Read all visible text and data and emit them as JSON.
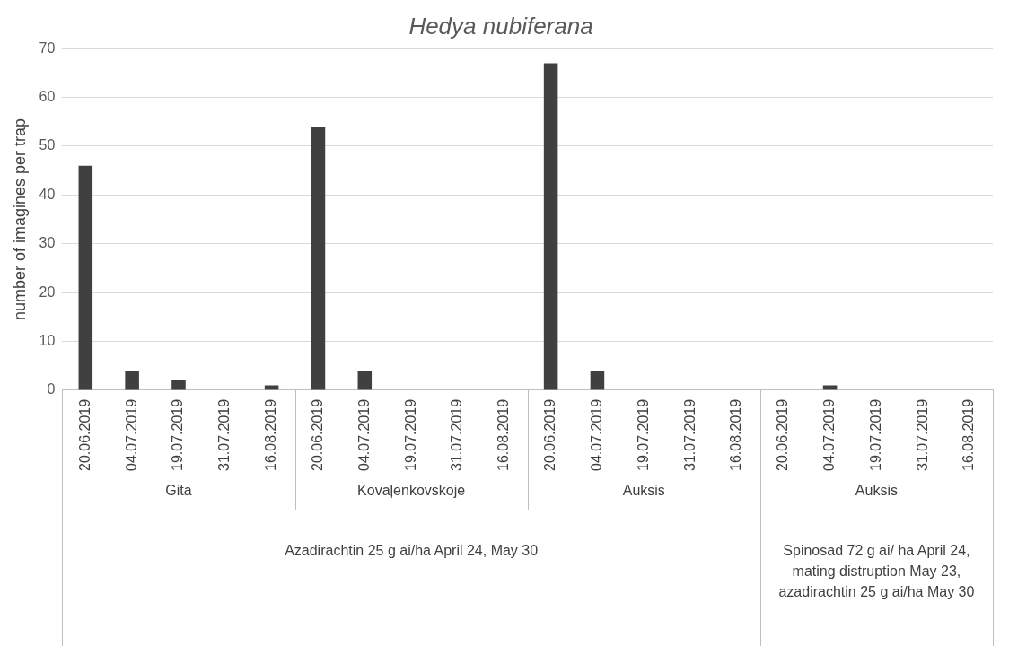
{
  "chart_data": {
    "type": "bar",
    "title": "Hedya nubiferana",
    "ylabel": "number of imagines per trap",
    "categories": [
      "20.06.2019",
      "04.07.2019",
      "19.07.2019",
      "31.07.2019",
      "16.08.2019",
      "20.06.2019",
      "04.07.2019",
      "19.07.2019",
      "31.07.2019",
      "16.08.2019",
      "20.06.2019",
      "04.07.2019",
      "19.07.2019",
      "31.07.2019",
      "16.08.2019",
      "20.06.2019",
      "04.07.2019",
      "19.07.2019",
      "31.07.2019",
      "16.08.2019"
    ],
    "values": [
      46,
      4,
      2,
      0,
      1,
      54,
      4,
      0,
      0,
      0,
      67,
      4,
      0,
      0,
      0,
      0,
      1,
      0,
      0,
      0
    ],
    "color": "#404040",
    "ylim": [
      0,
      70
    ],
    "yticks": [
      0,
      10,
      20,
      30,
      40,
      50,
      60,
      70
    ],
    "grid": "y",
    "annotations": [
      "Gita",
      "Kovaļenkovskoje",
      "Auksis",
      "Auksis",
      "Azadirachtin 25 g ai/ha April 24, May 30",
      "Spinosad 72 g ai/ ha April 24, mating distruption May 23, azadirachtin 25 g ai/ha May 30"
    ]
  }
}
